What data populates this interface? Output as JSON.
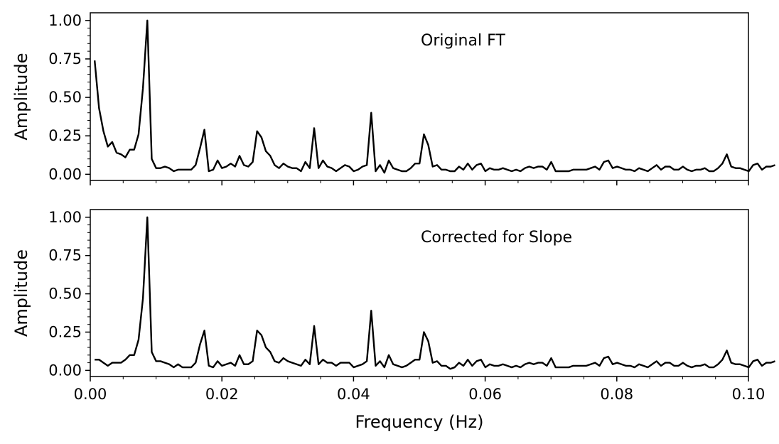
{
  "chart_data": [
    {
      "type": "line",
      "title": "",
      "annotation": "Original FT",
      "xlabel": "",
      "ylabel": "Amplitude",
      "xlim": [
        0,
        0.1
      ],
      "ylim": [
        -0.04,
        1.05
      ],
      "yticks": [
        0.0,
        0.25,
        0.5,
        0.75,
        1.0
      ],
      "ytick_labels": [
        "0.00",
        "0.25",
        "0.50",
        "0.75",
        "1.00"
      ],
      "xticks": [
        0.0,
        0.02,
        0.04,
        0.06,
        0.08,
        0.1
      ],
      "xtick_labels": [],
      "grid": false,
      "line_color": "#000000",
      "series": [
        {
          "x_start": 0.000667,
          "x_step": 0.000667,
          "values": [
            0.74,
            0.43,
            0.28,
            0.18,
            0.21,
            0.14,
            0.13,
            0.11,
            0.16,
            0.16,
            0.26,
            0.56,
            1.0,
            0.1,
            0.04,
            0.04,
            0.05,
            0.04,
            0.02,
            0.03,
            0.03,
            0.03,
            0.03,
            0.06,
            0.17,
            0.29,
            0.02,
            0.03,
            0.09,
            0.04,
            0.05,
            0.07,
            0.05,
            0.12,
            0.06,
            0.05,
            0.08,
            0.28,
            0.24,
            0.15,
            0.12,
            0.06,
            0.04,
            0.07,
            0.05,
            0.04,
            0.04,
            0.02,
            0.08,
            0.04,
            0.3,
            0.04,
            0.09,
            0.05,
            0.04,
            0.02,
            0.04,
            0.06,
            0.05,
            0.02,
            0.03,
            0.05,
            0.06,
            0.4,
            0.02,
            0.06,
            0.01,
            0.09,
            0.04,
            0.03,
            0.02,
            0.02,
            0.04,
            0.07,
            0.07,
            0.26,
            0.19,
            0.05,
            0.06,
            0.03,
            0.03,
            0.02,
            0.02,
            0.05,
            0.03,
            0.07,
            0.03,
            0.06,
            0.07,
            0.02,
            0.04,
            0.03,
            0.03,
            0.04,
            0.03,
            0.02,
            0.03,
            0.02,
            0.04,
            0.05,
            0.04,
            0.05,
            0.05,
            0.03,
            0.08,
            0.02,
            0.02,
            0.02,
            0.02,
            0.03,
            0.03,
            0.03,
            0.03,
            0.04,
            0.05,
            0.03,
            0.08,
            0.09,
            0.04,
            0.05,
            0.04,
            0.03,
            0.03,
            0.02,
            0.04,
            0.03,
            0.02,
            0.04,
            0.06,
            0.03,
            0.05,
            0.05,
            0.03,
            0.03,
            0.05,
            0.03,
            0.02,
            0.03,
            0.03,
            0.04,
            0.02,
            0.02,
            0.04,
            0.07,
            0.13,
            0.05,
            0.04,
            0.04,
            0.03,
            0.02,
            0.06,
            0.07,
            0.03,
            0.05,
            0.05,
            0.06
          ]
        }
      ]
    },
    {
      "type": "line",
      "title": "",
      "annotation": "Corrected for Slope",
      "xlabel": "Frequency (Hz)",
      "ylabel": "Amplitude",
      "xlim": [
        0,
        0.1
      ],
      "ylim": [
        -0.04,
        1.05
      ],
      "yticks": [
        0.0,
        0.25,
        0.5,
        0.75,
        1.0
      ],
      "ytick_labels": [
        "0.00",
        "0.25",
        "0.50",
        "0.75",
        "1.00"
      ],
      "xticks": [
        0.0,
        0.02,
        0.04,
        0.06,
        0.08,
        0.1
      ],
      "xtick_labels": [
        "0.00",
        "0.02",
        "0.04",
        "0.06",
        "0.08",
        "0.10"
      ],
      "grid": false,
      "line_color": "#000000",
      "series": [
        {
          "x_start": 0.000667,
          "x_step": 0.000667,
          "values": [
            0.07,
            0.07,
            0.05,
            0.03,
            0.05,
            0.05,
            0.05,
            0.07,
            0.1,
            0.1,
            0.2,
            0.47,
            1.0,
            0.12,
            0.06,
            0.06,
            0.05,
            0.04,
            0.02,
            0.04,
            0.02,
            0.02,
            0.02,
            0.05,
            0.17,
            0.26,
            0.03,
            0.02,
            0.06,
            0.03,
            0.04,
            0.05,
            0.03,
            0.1,
            0.04,
            0.04,
            0.06,
            0.26,
            0.23,
            0.15,
            0.12,
            0.06,
            0.05,
            0.08,
            0.06,
            0.05,
            0.04,
            0.03,
            0.07,
            0.04,
            0.29,
            0.04,
            0.07,
            0.05,
            0.05,
            0.03,
            0.05,
            0.05,
            0.05,
            0.02,
            0.03,
            0.04,
            0.06,
            0.39,
            0.03,
            0.06,
            0.02,
            0.1,
            0.04,
            0.03,
            0.02,
            0.03,
            0.05,
            0.07,
            0.07,
            0.25,
            0.19,
            0.05,
            0.06,
            0.03,
            0.03,
            0.01,
            0.02,
            0.05,
            0.03,
            0.07,
            0.03,
            0.06,
            0.07,
            0.02,
            0.04,
            0.03,
            0.03,
            0.04,
            0.03,
            0.02,
            0.03,
            0.02,
            0.04,
            0.05,
            0.04,
            0.05,
            0.05,
            0.03,
            0.08,
            0.02,
            0.02,
            0.02,
            0.02,
            0.03,
            0.03,
            0.03,
            0.03,
            0.04,
            0.05,
            0.03,
            0.08,
            0.09,
            0.04,
            0.05,
            0.04,
            0.03,
            0.03,
            0.02,
            0.04,
            0.03,
            0.02,
            0.04,
            0.06,
            0.03,
            0.05,
            0.05,
            0.03,
            0.03,
            0.05,
            0.03,
            0.02,
            0.03,
            0.03,
            0.04,
            0.02,
            0.02,
            0.04,
            0.07,
            0.13,
            0.05,
            0.04,
            0.04,
            0.03,
            0.02,
            0.06,
            0.07,
            0.03,
            0.05,
            0.05,
            0.06
          ]
        }
      ]
    }
  ]
}
